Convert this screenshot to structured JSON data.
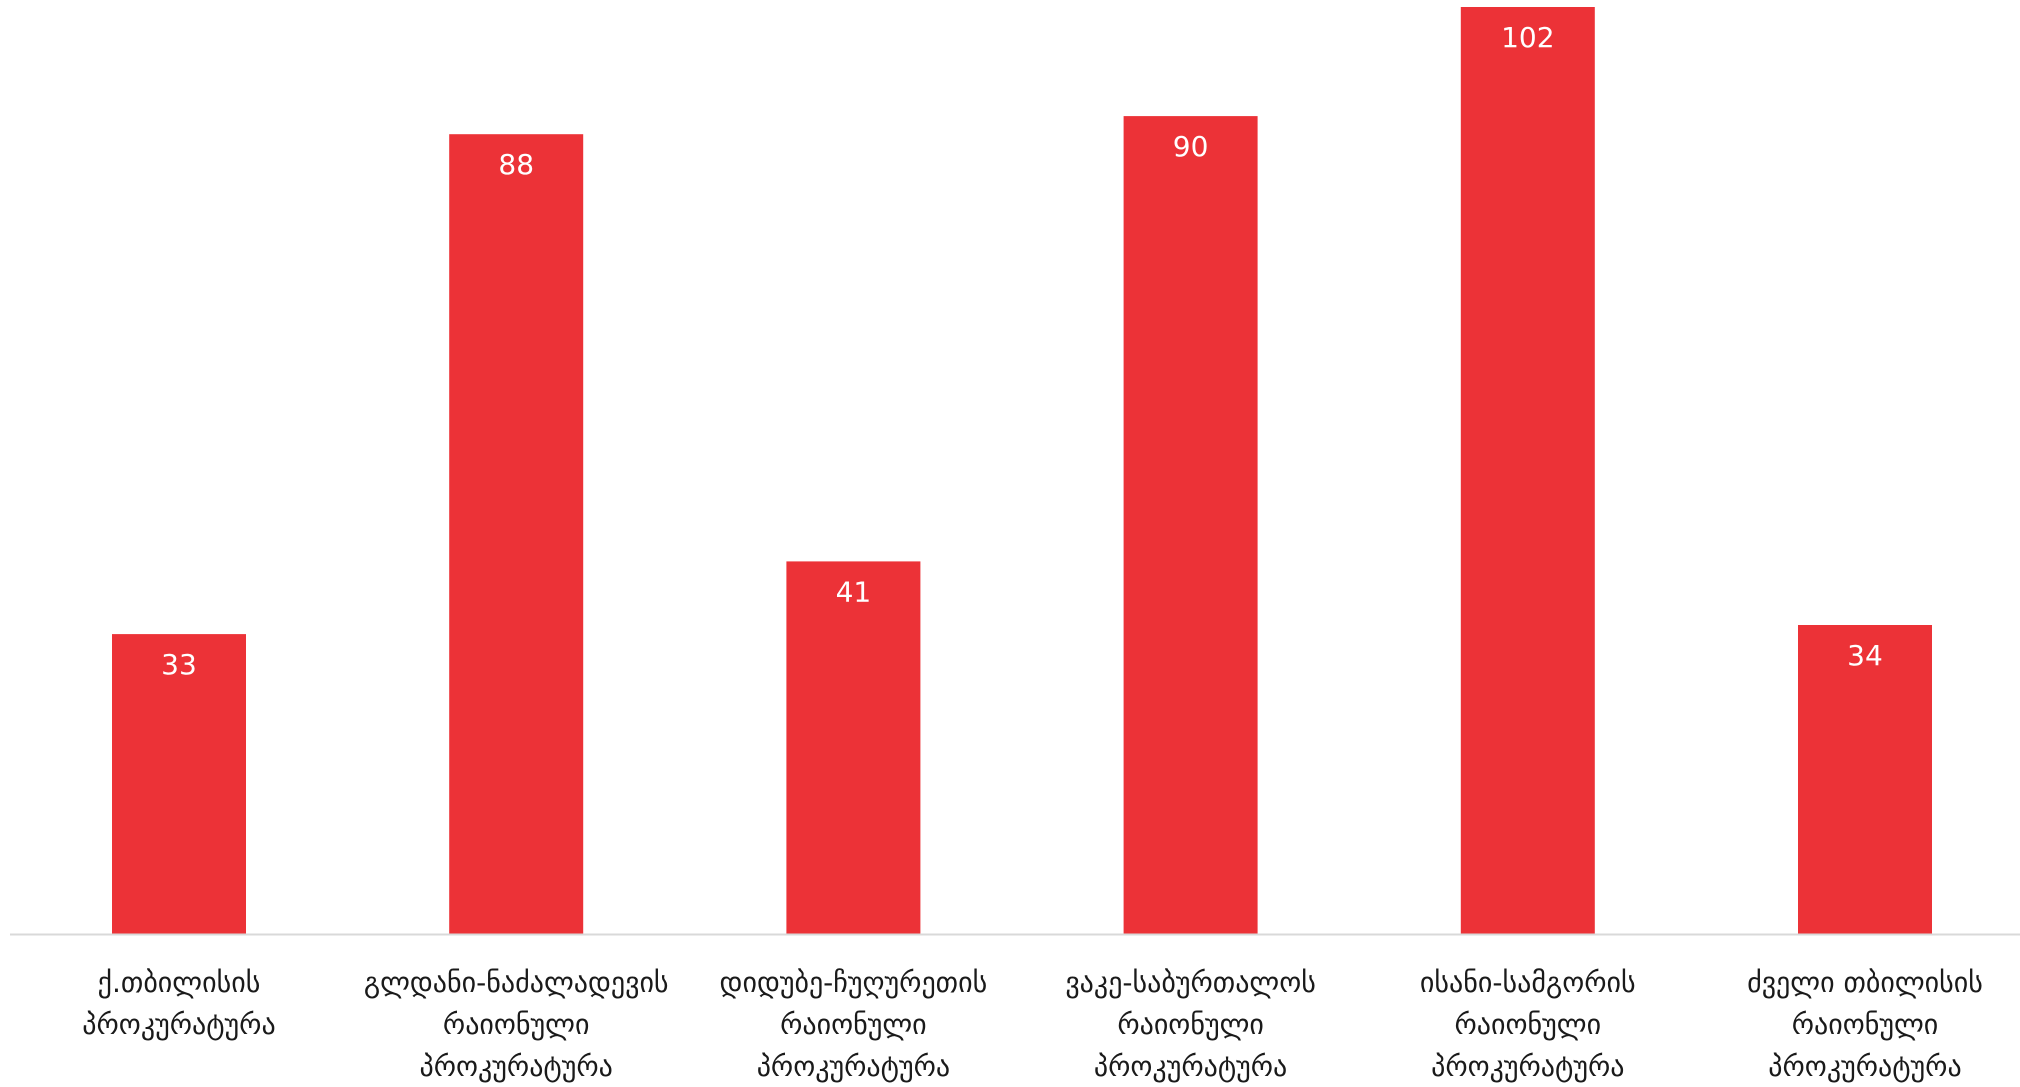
{
  "chart_data": {
    "type": "bar",
    "categories": [
      [
        "ქ.თბილისის",
        "პროკურატურა"
      ],
      [
        "გლდანი-ნაძალადევის",
        "რაიონული",
        "პროკურატურა"
      ],
      [
        "დიდუბე-ჩუღურეთის",
        "რაიონული",
        "პროკურატურა"
      ],
      [
        "ვაკე-საბურთალოს",
        "რაიონული",
        "პროკურატურა"
      ],
      [
        "ისანი-სამგორის",
        "რაიონული",
        "პროკურატურა"
      ],
      [
        "ძველი თბილისის",
        "რაიონული",
        "პროკურატურა"
      ]
    ],
    "values": [
      33,
      88,
      41,
      90,
      102,
      34
    ],
    "data_labels": [
      "33",
      "88",
      "41",
      "90",
      "102",
      "34"
    ],
    "ylim": [
      0,
      102
    ],
    "bar_color": "#EC3237",
    "axis_color": "#D9D9D9",
    "label_color": "#FFFFFF",
    "tick_label_color": "#1A1A1A",
    "grid": false,
    "legend": "none"
  }
}
